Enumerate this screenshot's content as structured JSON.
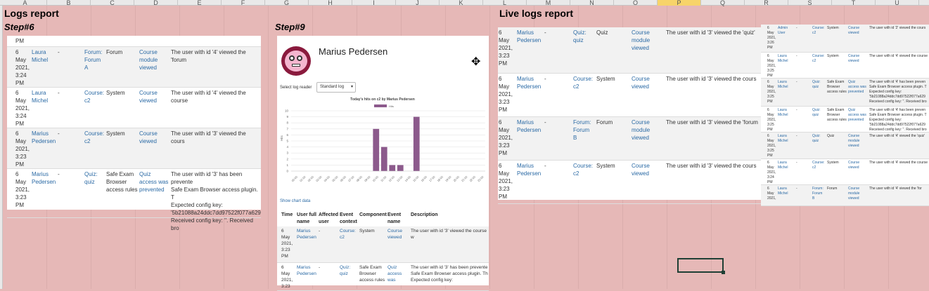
{
  "columns": [
    "A",
    "B",
    "C",
    "D",
    "E",
    "F",
    "G",
    "H",
    "I",
    "J",
    "K",
    "L",
    "M",
    "N",
    "O",
    "P",
    "Q",
    "R",
    "S",
    "T",
    "U"
  ],
  "selected_column": "P",
  "titles": {
    "logs": "Logs report",
    "live": "Live logs report"
  },
  "steps": {
    "s6": "Step#6",
    "s9": "Step#9"
  },
  "left_rows": [
    {
      "time": "PM",
      "user": "",
      "affected": "",
      "context": "",
      "component": "",
      "event": "",
      "desc": ""
    },
    {
      "time": "6\nMay\n2021,\n3:24\nPM",
      "user": "Laura\nMichel",
      "affected": "-",
      "context": "Forum:\nForum\nA",
      "component": "Forum",
      "event": "Course\nmodule\nviewed",
      "desc": "The user with id '4' viewed the 'forum"
    },
    {
      "time": "6\nMay\n2021,\n3:24\nPM",
      "user": "Laura\nMichel",
      "affected": "-",
      "context": "Course:\nc2",
      "component": "System",
      "event": "Course\nviewed",
      "desc": "The user with id '4' viewed the course"
    },
    {
      "time": "6\nMay\n2021,\n3:23\nPM",
      "user": "Marius\nPedersen",
      "affected": "-",
      "context": "Course:\nc2",
      "component": "System",
      "event": "Course\nviewed",
      "desc": "The user with id '3' viewed the cours"
    },
    {
      "time": "6\nMay\n2021,\n3:23\nPM",
      "user": "Marius\nPedersen",
      "affected": "-",
      "context": "Quiz:\nquiz",
      "component": "Safe Exam\nBrowser\naccess rules",
      "event": "Quiz\naccess was\nprevented",
      "desc": "The user with id '3' has been prevente\nSafe Exam Browser access plugin. T\nExpected config key:\n'5b21088a24ddc7dd97522f077a629\nReceived config key: ''. Received bro"
    }
  ],
  "center": {
    "name": "Marius Pedersen",
    "log_reader_label": "Select log reader",
    "log_reader_value": "Standard log",
    "chart_link": "Show chart data",
    "headers": [
      "Time",
      "User full\nname",
      "Affected\nuser",
      "Event\ncontext",
      "Component",
      "Event\nname",
      "Description"
    ],
    "rows": [
      {
        "time": "6\nMay\n2021,\n3:23\nPM",
        "user": "Marius\nPedersen",
        "affected": "-",
        "context": "Course:\nc2",
        "component": "System",
        "event": "Course\nviewed",
        "desc": "The user with id '3' viewed the course w"
      },
      {
        "time": "6\nMay\n2021,\n3:23",
        "user": "Marius\nPedersen",
        "affected": "-",
        "context": "Quiz:\nquiz",
        "component": "Safe Exam\nBrowser\naccess rules",
        "event": "Quiz\naccess\nwas",
        "desc": "The user with id '3' has been prevente\nSafe Exam Browser access plugin. Th\nExpected config key:"
      }
    ]
  },
  "chart_data": {
    "type": "bar",
    "title": "Today's hits on c2 by Marius Pedersen",
    "legend": [
      "Hits"
    ],
    "ylabel": "Hits",
    "ylim": [
      0,
      10
    ],
    "yticks": [
      0,
      1,
      2,
      3,
      4,
      5,
      6,
      7,
      8,
      9,
      10
    ],
    "categories": [
      "00:00",
      "01:00",
      "02:00",
      "03:00",
      "04:00",
      "05:00",
      "06:00",
      "07:00",
      "08:00",
      "09:00",
      "10:00",
      "11:00",
      "12:00",
      "13:00",
      "14:00",
      "15:00",
      "16:00",
      "17:00",
      "18:00",
      "19:00",
      "20:00",
      "21:00",
      "22:00",
      "23:00"
    ],
    "values": [
      0,
      0,
      0,
      0,
      0,
      0,
      0,
      0,
      0,
      0,
      7,
      4,
      1,
      1,
      0,
      9,
      0,
      0,
      0,
      0,
      0,
      0,
      0,
      0
    ],
    "color": "#8c5a8c"
  },
  "live_rows": [
    {
      "time": "6\nMay\n2021,\n3:23\nPM",
      "user": "Marius\nPedersen",
      "affected": "-",
      "context": "Quiz:\nquiz",
      "component": "Quiz",
      "event": "Course\nmodule\nviewed",
      "desc": "The user with id '3' viewed the 'quiz'"
    },
    {
      "time": "6\nMay\n2021,\n3:23\nPM",
      "user": "Marius\nPedersen",
      "affected": "-",
      "context": "Course:\nc2",
      "component": "System",
      "event": "Course\nviewed",
      "desc": "The user with id '3' viewed the cours"
    },
    {
      "time": "6\nMay\n2021,\n3:23\nPM",
      "user": "Marius\nPedersen",
      "affected": "-",
      "context": "Forum:\nForum\nB",
      "component": "Forum",
      "event": "Course\nmodule\nviewed",
      "desc": "The user with id '3' viewed the 'forum"
    },
    {
      "time": "6\nMay\n2021,\n3:23\nPM",
      "user": "Marius\nPedersen",
      "affected": "-",
      "context": "Course:\nc2",
      "component": "System",
      "event": "Course\nviewed",
      "desc": "The user with id '3' viewed the cours"
    }
  ],
  "small_rows": [
    {
      "time": "6\nMay\n2021,\n3:26\nPM",
      "user": "Admin\nUser",
      "affected": "-",
      "context": "Course:\nc2",
      "component": "System",
      "event": "Course\nviewed",
      "desc": "The user with id '2' viewed the cours"
    },
    {
      "time": "6\nMay\n2021,\n3:25\nPM",
      "user": "Laura\nMichel",
      "affected": "-",
      "context": "Course:\nc2",
      "component": "System",
      "event": "Course\nviewed",
      "desc": "The user with id '4' viewed the course"
    },
    {
      "time": "6\nMay\n2021,\n3:25\nPM",
      "user": "Laura\nMichel",
      "affected": "-",
      "context": "Quiz:\nquiz",
      "component": "Safe Exam\nBrowser\naccess rules",
      "event": "Quiz\naccess was\nprevented",
      "desc": "The user with id '4' has been preven\nSafe Exam Browser access plugin. T\nExpected config key:\n'5b21088a24ddc7dd97522f077a629\nReceived config key: ''. Received bro"
    },
    {
      "time": "6\nMay\n2021,\n3:25\nPM",
      "user": "Laura\nMichel",
      "affected": "-",
      "context": "Quiz:\nquiz",
      "component": "Safe Exam\nBrowser\naccess rules",
      "event": "Quiz\naccess was\nprevented",
      "desc": "The user with id '4' has been preven\nSafe Exam Browser access plugin. T\nExpected config key:\n'5b21088a24ddc7dd97522f077a629\nReceived config key: ''. Received bro"
    },
    {
      "time": "6\nMay\n2021,\n3:25\nPM",
      "user": "Laura\nMichel",
      "affected": "-",
      "context": "Quiz:\nquiz",
      "component": "Quiz",
      "event": "Course\nmodule\nviewed",
      "desc": "The user with id '4' viewed the 'quiz'"
    },
    {
      "time": "6\nMay\n2021,\n3:24\nPM",
      "user": "Laura\nMichel",
      "affected": "-",
      "context": "Course:\nc2",
      "component": "System",
      "event": "Course\nviewed",
      "desc": "The user with id '4' viewed the course"
    },
    {
      "time": "6\nMay\n2021,",
      "user": "Laura\nMichel",
      "affected": "-",
      "context": "Forum:\nForum\nB",
      "component": "Forum",
      "event": "Course\nmodule\nviewed",
      "desc": "The user with id '4' viewed the 'for"
    }
  ]
}
